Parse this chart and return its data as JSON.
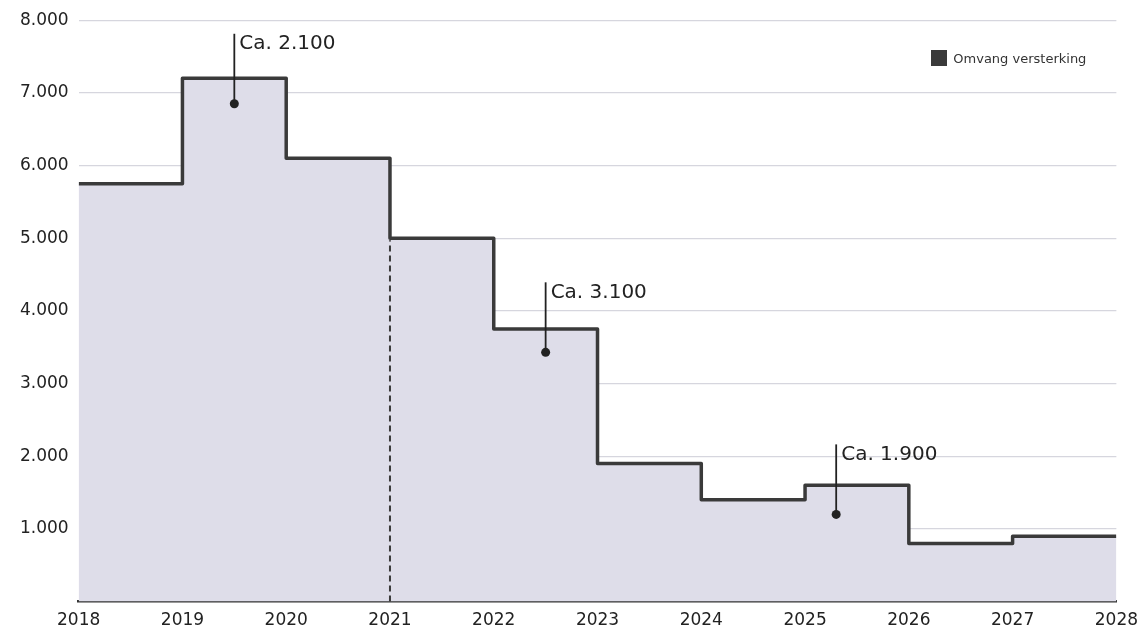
{
  "chart_data": {
    "type": "area",
    "x": [
      2018,
      2019,
      2019,
      2020,
      2020,
      2021,
      2021,
      2022,
      2022,
      2023,
      2023,
      2024,
      2024,
      2025,
      2025,
      2026,
      2026,
      2027,
      2027,
      2028
    ],
    "series": [
      {
        "name": "Omvang versterking",
        "color": "#3a3a3a",
        "values": [
          5750,
          5750,
          7200,
          7200,
          6100,
          6100,
          5000,
          5000,
          3750,
          3750,
          1900,
          1900,
          1400,
          1400,
          1600,
          1600,
          800,
          800,
          900,
          900
        ]
      }
    ],
    "xlim": [
      2018,
      2028
    ],
    "xticks": [
      2018,
      2019,
      2020,
      2021,
      2022,
      2023,
      2024,
      2025,
      2026,
      2027,
      2028
    ],
    "ylim": [
      0,
      8000
    ],
    "yticks": [
      {
        "value": 1000,
        "label": "1.000"
      },
      {
        "value": 2000,
        "label": "2.000"
      },
      {
        "value": 3000,
        "label": "3.000"
      },
      {
        "value": 4000,
        "label": "4.000"
      },
      {
        "value": 5000,
        "label": "5.000"
      },
      {
        "value": 6000,
        "label": "6.000"
      },
      {
        "value": 7000,
        "label": "7.000"
      },
      {
        "value": 8000,
        "label": "8.000"
      }
    ],
    "grid": "y",
    "legend": "top right",
    "line_style": "solid",
    "marker": "none",
    "ref_lines": [
      {
        "axis": "x",
        "value": 2021,
        "label": null,
        "line_style": "dashed",
        "color": "#3a3a3a"
      }
    ],
    "annotations": [
      {
        "text": "Ca. 2.100",
        "x": 2019.5,
        "y": 6850
      },
      {
        "text": "Ca. 3.100",
        "x": 2022.5,
        "y": 3430
      },
      {
        "text": "Ca. 1.900",
        "x": 2025.3,
        "y": 1200
      }
    ]
  }
}
